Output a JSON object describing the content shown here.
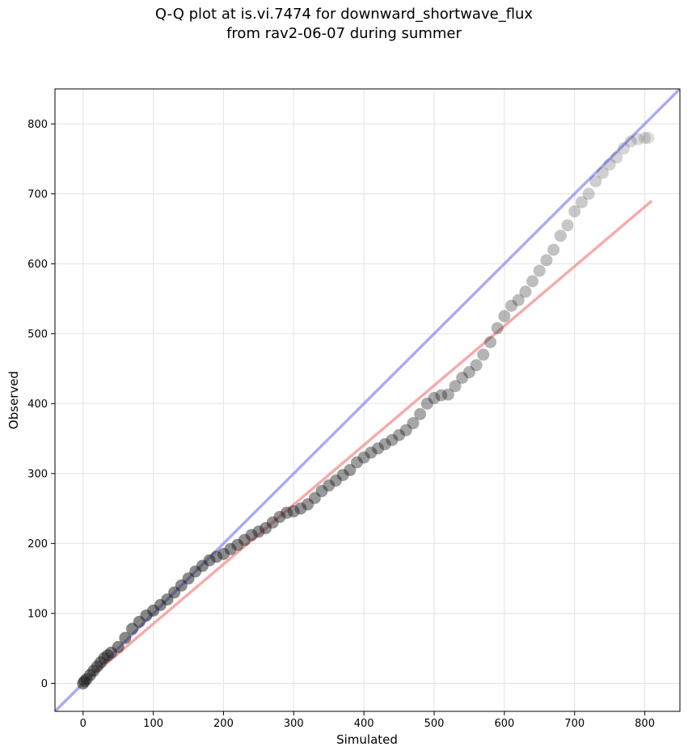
{
  "chart_data": {
    "type": "scatter",
    "title_line1": "Q-Q plot at is.vi.7474 for downward_shortwave_flux",
    "title_line2": "from rav2-06-07 during summer",
    "xlabel": "Simulated",
    "ylabel": "Observed",
    "xlim": [
      -40,
      850
    ],
    "ylim": [
      -40,
      850
    ],
    "xticks": [
      0,
      100,
      200,
      300,
      400,
      500,
      600,
      700,
      800
    ],
    "yticks": [
      0,
      100,
      200,
      300,
      400,
      500,
      600,
      700,
      800
    ],
    "grid": true,
    "colors": {
      "points": "#222222",
      "identity_line": "#6666ee",
      "fit_line": "#f08080"
    },
    "identity_line": {
      "x": [
        -40,
        850
      ],
      "y": [
        -40,
        850
      ]
    },
    "fit_line": {
      "x": [
        0,
        810
      ],
      "y": [
        0,
        690
      ]
    },
    "points": {
      "x": [
        0,
        2,
        5,
        10,
        15,
        20,
        25,
        30,
        35,
        40,
        50,
        60,
        70,
        80,
        90,
        100,
        110,
        120,
        130,
        140,
        150,
        160,
        170,
        180,
        190,
        200,
        210,
        220,
        230,
        240,
        250,
        260,
        270,
        280,
        290,
        300,
        310,
        320,
        330,
        340,
        350,
        360,
        370,
        380,
        390,
        400,
        410,
        420,
        430,
        440,
        450,
        460,
        470,
        480,
        490,
        500,
        510,
        520,
        530,
        540,
        550,
        560,
        570,
        580,
        590,
        600,
        610,
        620,
        630,
        640,
        650,
        660,
        670,
        680,
        690,
        700,
        710,
        720,
        730,
        740,
        750,
        760,
        770,
        780,
        790,
        800,
        805
      ],
      "y": [
        0,
        3,
        6,
        12,
        18,
        24,
        30,
        36,
        40,
        44,
        52,
        65,
        78,
        88,
        97,
        104,
        112,
        120,
        130,
        140,
        150,
        160,
        168,
        176,
        181,
        185,
        192,
        198,
        205,
        212,
        217,
        222,
        230,
        238,
        244,
        246,
        250,
        256,
        265,
        275,
        283,
        290,
        298,
        305,
        316,
        323,
        330,
        336,
        342,
        348,
        355,
        362,
        372,
        385,
        400,
        408,
        412,
        413,
        425,
        437,
        445,
        455,
        470,
        488,
        508,
        525,
        540,
        548,
        560,
        575,
        590,
        605,
        620,
        640,
        655,
        675,
        688,
        700,
        718,
        730,
        742,
        752,
        765,
        775,
        778,
        780,
        780
      ]
    }
  }
}
